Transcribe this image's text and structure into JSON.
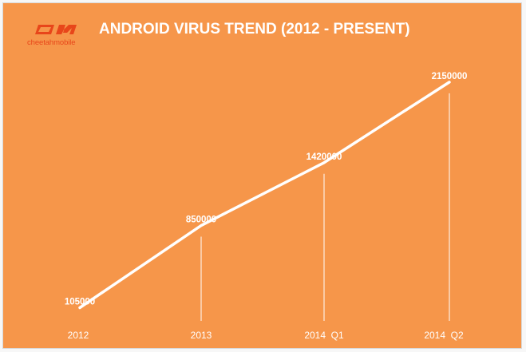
{
  "header": {
    "title": "ANDROID VIRUS TREND (2012 - PRESENT)",
    "logo_text": "cheetahmobile"
  },
  "colors": {
    "background": "#f6964a",
    "line": "#ffffff",
    "brand": "#e8461a"
  },
  "chart_data": {
    "type": "line",
    "title": "ANDROID VIRUS TREND (2012 - PRESENT)",
    "categories": [
      "2012",
      "2013",
      "2014  Q1",
      "2014  Q2"
    ],
    "series": [
      {
        "values": [
          105000,
          850000,
          1420000,
          2150000
        ]
      }
    ],
    "data_labels": [
      "105000",
      "850000",
      "1420000",
      "2150000"
    ],
    "xlabel": "",
    "ylabel": "",
    "ylim": [
      0,
      2200000
    ],
    "grid": false,
    "legend": "none"
  }
}
